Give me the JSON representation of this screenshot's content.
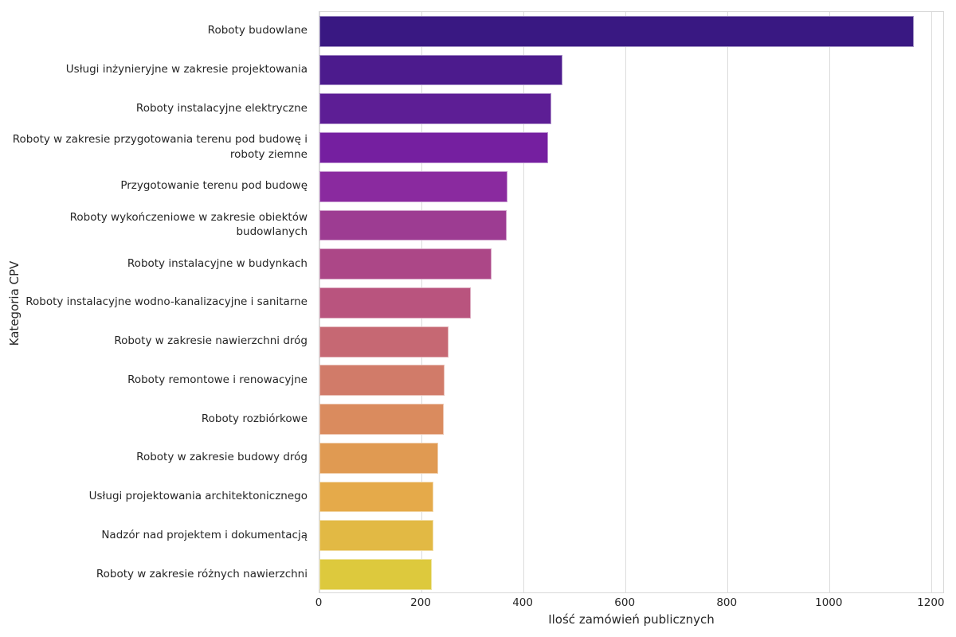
{
  "chart_data": {
    "type": "bar",
    "orientation": "horizontal",
    "xlabel": "Ilość zamówień publicznych",
    "ylabel": "Kategoria CPV",
    "xlim": [
      0,
      1226
    ],
    "xticks": [
      0,
      200,
      400,
      600,
      800,
      1000,
      1200
    ],
    "grid": true,
    "legend": false,
    "categories": [
      "Roboty budowlane",
      "Usługi inżynieryjne w zakresie projektowania",
      "Roboty instalacyjne elektryczne",
      "Roboty w zakresie przygotowania terenu pod budowę i roboty ziemne",
      "Przygotowanie terenu pod budowę",
      "Roboty wykończeniowe w zakresie obiektów budowlanych",
      "Roboty instalacyjne w budynkach",
      "Roboty instalacyjne wodno-kanalizacyjne i sanitarne",
      "Roboty w zakresie nawierzchni dróg",
      "Roboty remontowe i renowacyjne",
      "Roboty rozbiórkowe",
      "Roboty w zakresie budowy dróg",
      "Usługi projektowania architektonicznego",
      "Nadzór nad projektem i dokumentacją",
      "Roboty w zakresie różnych nawierzchni"
    ],
    "values": [
      1168,
      478,
      455,
      450,
      369,
      368,
      338,
      298,
      253,
      246,
      245,
      233,
      224,
      224,
      221
    ],
    "bar_colors": [
      "#391882",
      "#4C1B8D",
      "#5D1E95",
      "#751FA0",
      "#8A2A9F",
      "#9D3C92",
      "#AC4787",
      "#B9547E",
      "#C66873",
      "#D17B69",
      "#DA8B5E",
      "#E09A52",
      "#E5AA4A",
      "#E2B944",
      "#DDC93D"
    ],
    "grid_color": "#dcdcdc",
    "spine_color": "#d9d9d9",
    "text_color": "#262626"
  }
}
